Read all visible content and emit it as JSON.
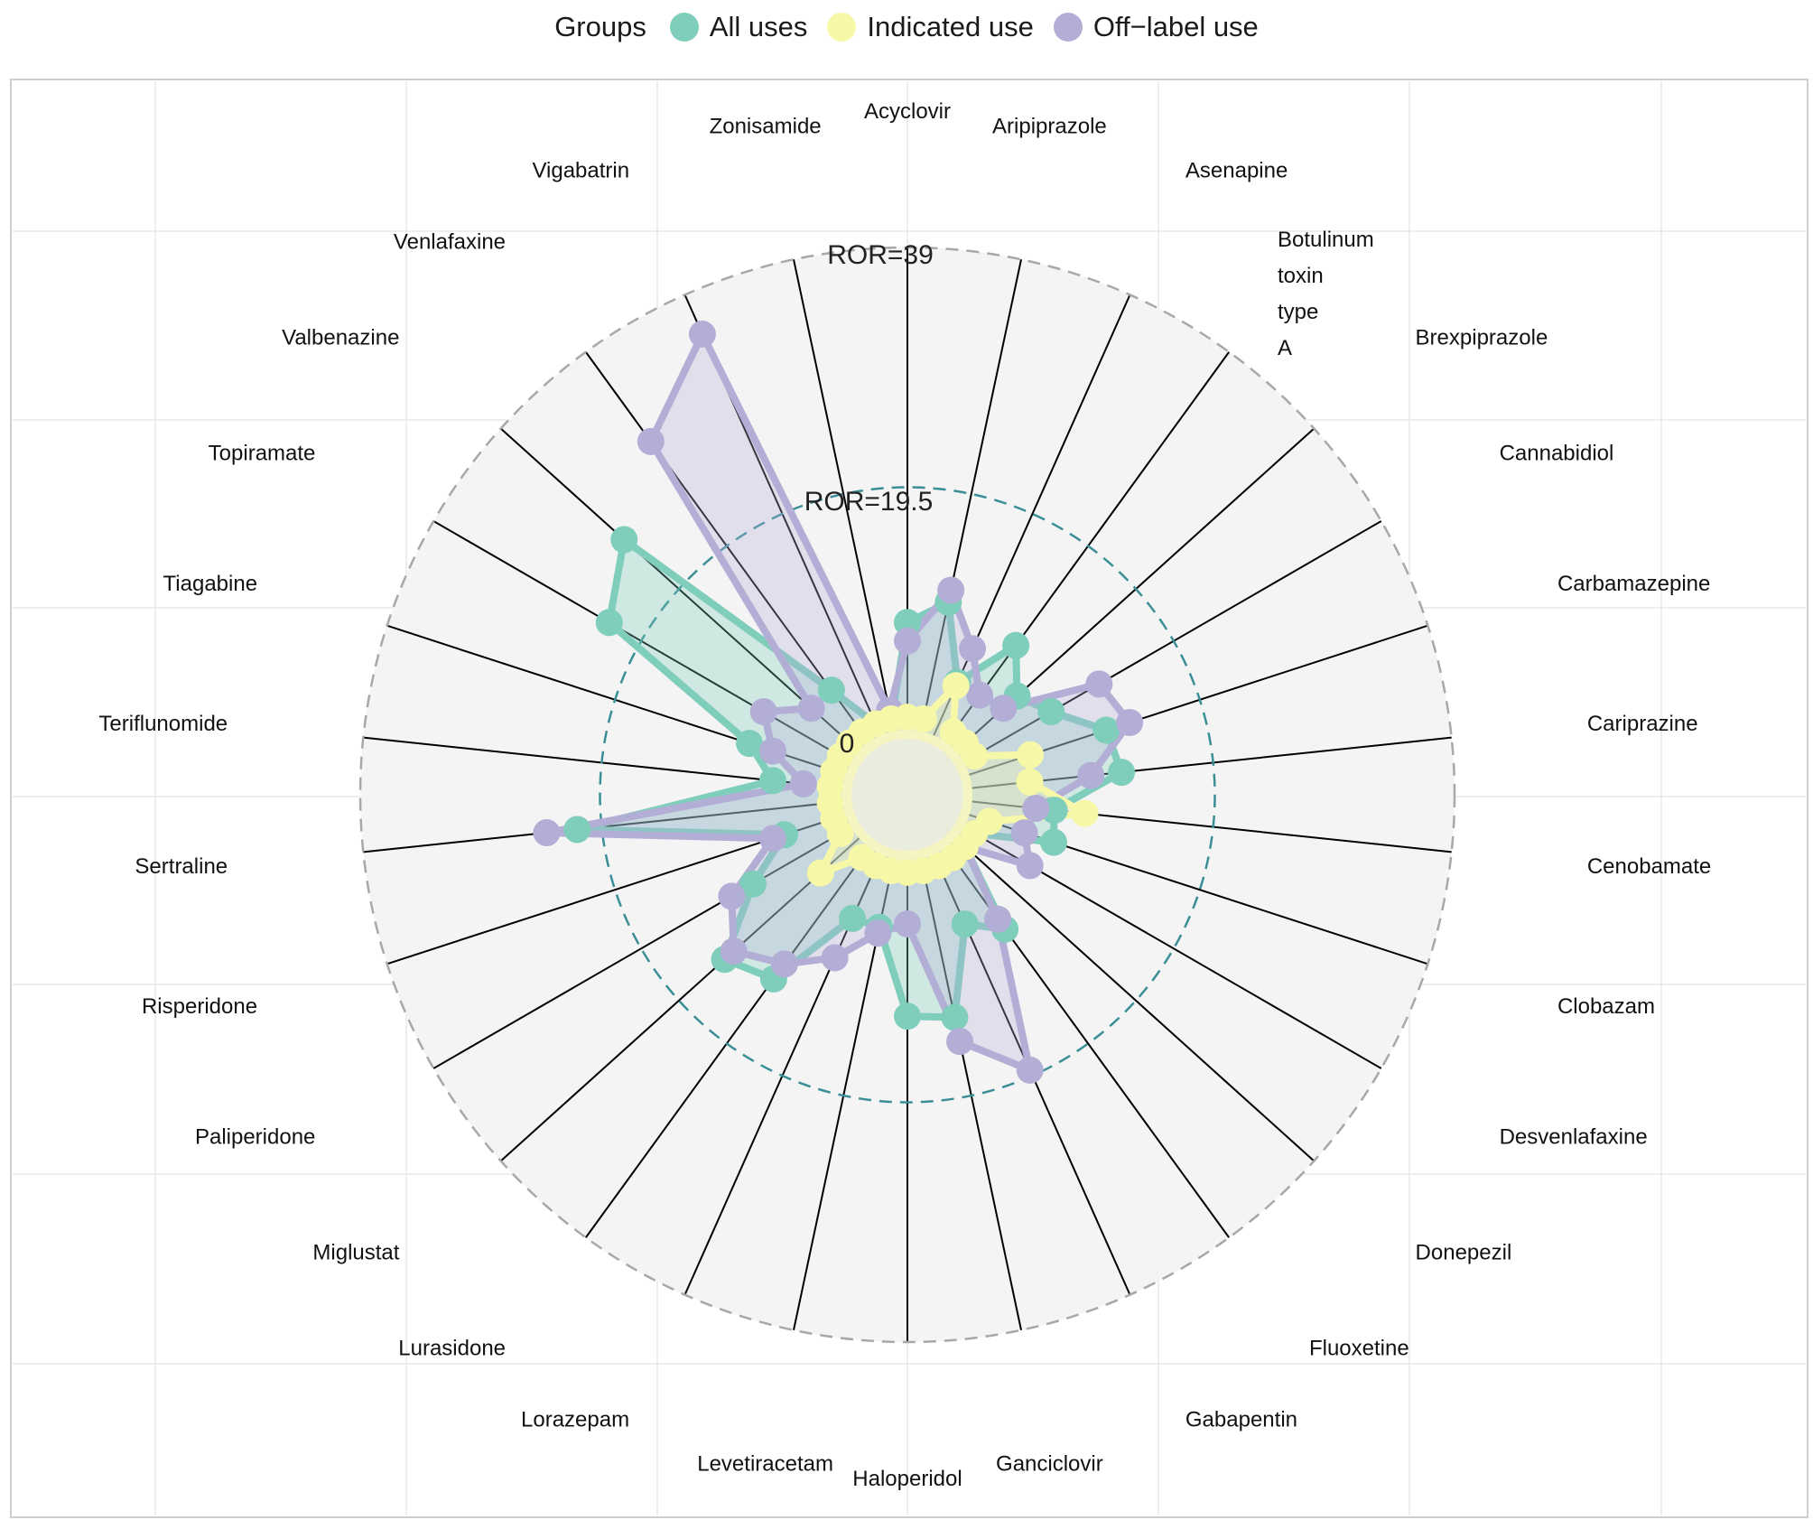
{
  "legend": {
    "title": "Groups",
    "items": [
      {
        "label": "All uses",
        "color": "#7FCDBB"
      },
      {
        "label": "Indicated use",
        "color": "#F7F7A8"
      },
      {
        "label": "Off−label use",
        "color": "#B3AED6"
      }
    ]
  },
  "chart_data": {
    "type": "radar",
    "grid": true,
    "legend_position": "top",
    "rmax": 39,
    "ring_labels": [
      "ROR=39",
      "ROR=19.5",
      "0"
    ],
    "categories": [
      "Acyclovir",
      "Aripiprazole",
      "Asenapine",
      "Botulinum toxin type A",
      "Brexpiprazole",
      "Cannabidiol",
      "Carbamazepine",
      "Cariprazine",
      "Cenobamate",
      "Clobazam",
      "Desvenlafaxine",
      "Donepezil",
      "Fluoxetine",
      "Gabapentin",
      "Ganciclovir",
      "Haloperidol",
      "Levetiracetam",
      "Lorazepam",
      "Lurasidone",
      "Miglustat",
      "Paliperidone",
      "Risperidone",
      "Sertraline",
      "Teriflunomide",
      "Tiagabine",
      "Topiramate",
      "Valbenazine",
      "Venlafaxine",
      "Vigabatrin",
      "Zonisamide"
    ],
    "series": [
      {
        "name": "All uses",
        "color": "#7FCDBB",
        "values": [
          8.5,
          10.5,
          4.5,
          9.5,
          6.5,
          8,
          11.5,
          12,
          6.5,
          7,
          0.8,
          0.8,
          8,
          6,
          13,
          12.5,
          5.5,
          5.5,
          13,
          14.5,
          9,
          5,
          21.5,
          5.5,
          8,
          22.5,
          25.5,
          5,
          0.8,
          0.8
        ]
      },
      {
        "name": "Indicated use",
        "color": "#F7F7A8",
        "values": [
          0.8,
          0.8,
          4.2,
          0.8,
          0.8,
          0.8,
          5,
          4.5,
          9,
          1.5,
          0.8,
          0.8,
          0.8,
          0.8,
          0.8,
          0.8,
          0.8,
          0.8,
          0.8,
          4,
          0.8,
          0.8,
          0.8,
          0.8,
          0.8,
          0.8,
          0.8,
          0.8,
          0.8,
          0.8
        ]
      },
      {
        "name": "Off−label use",
        "color": "#B3AED6",
        "values": [
          7,
          11.5,
          7.5,
          4.5,
          5,
          12.5,
          13.5,
          9.5,
          5,
          4.5,
          6,
          0.8,
          7,
          19,
          15,
          5,
          6,
          9,
          11.5,
          13.5,
          11,
          6,
          24,
          3,
          6,
          8,
          5,
          30,
          35.5,
          1.5
        ]
      }
    ]
  }
}
